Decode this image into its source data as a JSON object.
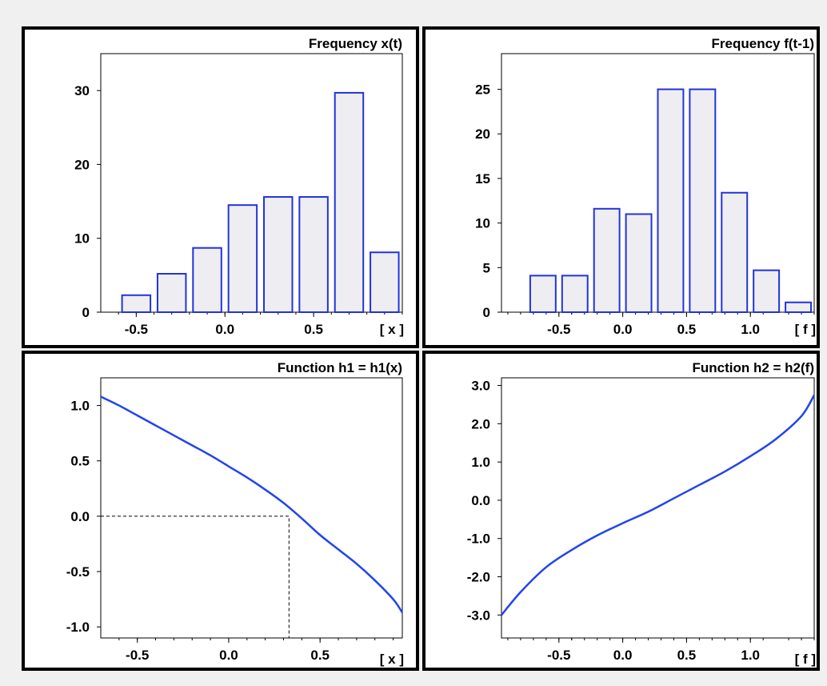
{
  "chart_data": [
    {
      "type": "bar",
      "title": "Frequency x(t)",
      "xlabel": "[ x ]",
      "x": [
        -0.5,
        -0.3,
        -0.1,
        0.1,
        0.3,
        0.5,
        0.7,
        0.9
      ],
      "values": [
        2.3,
        5.2,
        8.7,
        14.5,
        15.6,
        15.6,
        29.7,
        8.1
      ],
      "xlim": [
        -0.7,
        1.0
      ],
      "ylim": [
        0,
        35
      ],
      "xticks": [
        -0.5,
        0.0,
        0.5
      ],
      "xtick_labels": [
        "-0.5",
        "0.0",
        "0.5"
      ],
      "yticks": [
        0,
        10,
        20,
        30
      ],
      "ytick_labels": [
        "0",
        "10",
        "20",
        "30"
      ],
      "bar_width": 0.16
    },
    {
      "type": "bar",
      "title": "Frequency f(t-1)",
      "xlabel": "[ f ]",
      "x": [
        -0.625,
        -0.375,
        -0.125,
        0.125,
        0.375,
        0.625,
        0.875,
        1.125,
        1.375
      ],
      "values": [
        4.1,
        4.1,
        11.6,
        11.0,
        25.0,
        25.0,
        13.4,
        4.7,
        1.1
      ],
      "xlim": [
        -0.95,
        1.5
      ],
      "ylim": [
        0,
        29
      ],
      "xticks": [
        -0.5,
        0.0,
        0.5,
        1.0
      ],
      "xtick_labels": [
        "-0.5",
        "0.0",
        "0.5",
        "1.0"
      ],
      "yticks": [
        0,
        5,
        10,
        15,
        20,
        25
      ],
      "ytick_labels": [
        "0",
        "5",
        "10",
        "15",
        "20",
        "25"
      ],
      "bar_width": 0.2
    },
    {
      "type": "line",
      "title": "Function h1 = h1(x)",
      "xlabel": "[ x ]",
      "x": [
        -0.7,
        -0.6,
        -0.5,
        -0.4,
        -0.3,
        -0.2,
        -0.1,
        0.0,
        0.1,
        0.2,
        0.3,
        0.4,
        0.5,
        0.6,
        0.7,
        0.8,
        0.9,
        0.95
      ],
      "y": [
        1.08,
        1.0,
        0.91,
        0.82,
        0.73,
        0.64,
        0.55,
        0.45,
        0.35,
        0.24,
        0.12,
        -0.02,
        -0.17,
        -0.3,
        -0.43,
        -0.58,
        -0.75,
        -0.87
      ],
      "xlim": [
        -0.7,
        0.95
      ],
      "ylim": [
        -1.1,
        1.25
      ],
      "xticks": [
        -0.5,
        0.0,
        0.5
      ],
      "xtick_labels": [
        "-0.5",
        "0.0",
        "0.5"
      ],
      "yticks": [
        -1.0,
        -0.5,
        0.0,
        0.5,
        1.0
      ],
      "ytick_labels": [
        "-1.0",
        "-0.5",
        "0.0",
        "0.5",
        "1.0"
      ],
      "reference_point": {
        "x": 0.33,
        "y": 0.0
      }
    },
    {
      "type": "line",
      "title": "Function h2 = h2(f)",
      "xlabel": "[ f ]",
      "x": [
        -0.95,
        -0.8,
        -0.6,
        -0.4,
        -0.2,
        0.0,
        0.2,
        0.4,
        0.6,
        0.8,
        1.0,
        1.2,
        1.4,
        1.5
      ],
      "y": [
        -3.0,
        -2.4,
        -1.75,
        -1.3,
        -0.92,
        -0.6,
        -0.3,
        0.05,
        0.4,
        0.75,
        1.15,
        1.6,
        2.2,
        2.75
      ],
      "xlim": [
        -0.95,
        1.5
      ],
      "ylim": [
        -3.6,
        3.2
      ],
      "xticks": [
        -0.5,
        0.0,
        0.5,
        1.0
      ],
      "xtick_labels": [
        "-0.5",
        "0.0",
        "0.5",
        "1.0"
      ],
      "yticks": [
        -3.0,
        -2.0,
        -1.0,
        0.0,
        1.0,
        2.0,
        3.0
      ],
      "ytick_labels": [
        "-3.0",
        "-2.0",
        "-1.0",
        "0.0",
        "1.0",
        "2.0",
        "3.0"
      ]
    }
  ],
  "colors": {
    "bar_fill": "#eeeef2",
    "bar_stroke": "#2233dd",
    "curve": "#2244ee",
    "background": "#f0f0f0"
  }
}
